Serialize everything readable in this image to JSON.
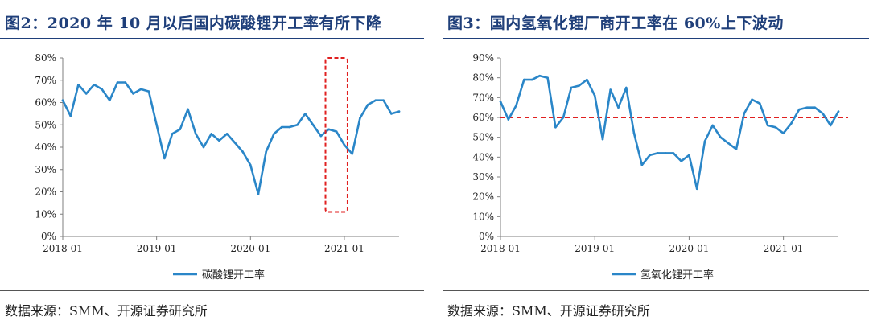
{
  "panels": [
    {
      "title": "图2：2020 年 10 月以后国内碳酸锂开工率有所下降",
      "source": "数据来源：SMM、开源证券研究所"
    },
    {
      "title": "图3：国内氢氧化锂厂商开工率在 60%上下波动",
      "source": "数据来源：SMM、开源证券研究所"
    }
  ],
  "chart_data": [
    {
      "type": "line",
      "title": "",
      "xlabel": "",
      "ylabel": "",
      "ylim": [
        0,
        80
      ],
      "y_ticks": [
        "0%",
        "10%",
        "20%",
        "30%",
        "40%",
        "50%",
        "60%",
        "70%",
        "80%"
      ],
      "x_ticks": [
        "2018-01",
        "2019-01",
        "2020-01",
        "2021-01"
      ],
      "x_range": [
        "2018-01",
        "2021-08"
      ],
      "grid": false,
      "legend_position": "bottom",
      "series": [
        {
          "name": "碳酸锂开工率",
          "color": "#2a86c8",
          "points": [
            [
              "2018-01",
              61
            ],
            [
              "2018-02",
              54
            ],
            [
              "2018-03",
              68
            ],
            [
              "2018-04",
              64
            ],
            [
              "2018-05",
              68
            ],
            [
              "2018-06",
              66
            ],
            [
              "2018-07",
              61
            ],
            [
              "2018-08",
              69
            ],
            [
              "2018-09",
              69
            ],
            [
              "2018-10",
              64
            ],
            [
              "2018-11",
              66
            ],
            [
              "2018-12",
              65
            ],
            [
              "2019-01",
              50
            ],
            [
              "2019-02",
              35
            ],
            [
              "2019-03",
              46
            ],
            [
              "2019-04",
              48
            ],
            [
              "2019-05",
              57
            ],
            [
              "2019-06",
              46
            ],
            [
              "2019-07",
              40
            ],
            [
              "2019-08",
              46
            ],
            [
              "2019-09",
              43
            ],
            [
              "2019-10",
              46
            ],
            [
              "2019-11",
              42
            ],
            [
              "2019-12",
              38
            ],
            [
              "2020-01",
              32
            ],
            [
              "2020-02",
              19
            ],
            [
              "2020-03",
              38
            ],
            [
              "2020-04",
              46
            ],
            [
              "2020-05",
              49
            ],
            [
              "2020-06",
              49
            ],
            [
              "2020-07",
              50
            ],
            [
              "2020-08",
              55
            ],
            [
              "2020-09",
              50
            ],
            [
              "2020-10",
              45
            ],
            [
              "2020-11",
              48
            ],
            [
              "2020-12",
              47
            ],
            [
              "2021-01",
              41
            ],
            [
              "2021-02",
              37
            ],
            [
              "2021-03",
              53
            ],
            [
              "2021-04",
              59
            ],
            [
              "2021-05",
              61
            ],
            [
              "2021-06",
              61
            ],
            [
              "2021-07",
              55
            ],
            [
              "2021-08",
              56
            ]
          ]
        }
      ],
      "highlight": {
        "shape": "dashed-rectangle",
        "color": "#e02020",
        "x_from": "2020-11",
        "x_to": "2021-01",
        "y_from": 11,
        "y_to": 80
      }
    },
    {
      "type": "line",
      "title": "",
      "xlabel": "",
      "ylabel": "",
      "ylim": [
        0,
        90
      ],
      "y_ticks": [
        "0%",
        "10%",
        "20%",
        "30%",
        "40%",
        "50%",
        "60%",
        "70%",
        "80%",
        "90%"
      ],
      "x_ticks": [
        "2018-01",
        "2019-01",
        "2020-01",
        "2021-01"
      ],
      "x_range": [
        "2018-01",
        "2021-08"
      ],
      "grid": false,
      "legend_position": "bottom",
      "series": [
        {
          "name": "氢氧化锂开工率",
          "color": "#2a86c8",
          "points": [
            [
              "2018-01",
              68
            ],
            [
              "2018-02",
              59
            ],
            [
              "2018-03",
              66
            ],
            [
              "2018-04",
              79
            ],
            [
              "2018-05",
              79
            ],
            [
              "2018-06",
              81
            ],
            [
              "2018-07",
              80
            ],
            [
              "2018-08",
              55
            ],
            [
              "2018-09",
              60
            ],
            [
              "2018-10",
              75
            ],
            [
              "2018-11",
              76
            ],
            [
              "2018-12",
              79
            ],
            [
              "2019-01",
              71
            ],
            [
              "2019-02",
              49
            ],
            [
              "2019-03",
              74
            ],
            [
              "2019-04",
              65
            ],
            [
              "2019-05",
              75
            ],
            [
              "2019-06",
              52
            ],
            [
              "2019-07",
              36
            ],
            [
              "2019-08",
              41
            ],
            [
              "2019-09",
              42
            ],
            [
              "2019-10",
              42
            ],
            [
              "2019-11",
              42
            ],
            [
              "2019-12",
              38
            ],
            [
              "2020-01",
              41
            ],
            [
              "2020-02",
              24
            ],
            [
              "2020-03",
              48
            ],
            [
              "2020-04",
              56
            ],
            [
              "2020-05",
              50
            ],
            [
              "2020-06",
              47
            ],
            [
              "2020-07",
              44
            ],
            [
              "2020-08",
              62
            ],
            [
              "2020-09",
              69
            ],
            [
              "2020-10",
              67
            ],
            [
              "2020-11",
              56
            ],
            [
              "2020-12",
              55
            ],
            [
              "2021-01",
              52
            ],
            [
              "2021-02",
              57
            ],
            [
              "2021-03",
              64
            ],
            [
              "2021-04",
              65
            ],
            [
              "2021-05",
              65
            ],
            [
              "2021-06",
              62
            ],
            [
              "2021-07",
              56
            ],
            [
              "2021-08",
              63
            ]
          ]
        }
      ],
      "reference_line": {
        "y": 60,
        "color": "#e02020",
        "style": "dashed"
      }
    }
  ]
}
